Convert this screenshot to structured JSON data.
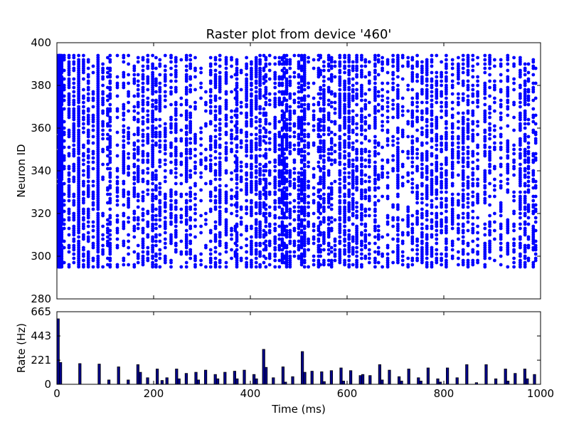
{
  "chart_data": [
    {
      "type": "scatter",
      "title": "Raster plot from device '460'",
      "xlabel": "",
      "ylabel": "Neuron ID",
      "xlim": [
        0,
        1000
      ],
      "ylim": [
        280,
        400
      ],
      "yticks": [
        "280",
        "300",
        "320",
        "340",
        "360",
        "380",
        "400"
      ],
      "neuron_id_range": [
        295,
        394
      ],
      "marker_color": "#0000ff",
      "series": [
        {
          "spike_times_ms": [
            3,
            5,
            6,
            7,
            8,
            10,
            15,
            25,
            35,
            45,
            55,
            65,
            75,
            85,
            95,
            105,
            110,
            125,
            138,
            148,
            160,
            168,
            178,
            188,
            198,
            205,
            213,
            224,
            236,
            246,
            257,
            268,
            276,
            286,
            298,
            308,
            318,
            328,
            337,
            350,
            361,
            369,
            372,
            381,
            392,
            402,
            412,
            420,
            428,
            432,
            440,
            451,
            460,
            466,
            470,
            475,
            482,
            491,
            500,
            506,
            512,
            520,
            531,
            541,
            545,
            552,
            562,
            568,
            575,
            585,
            595,
            604,
            612,
            620,
            630,
            638,
            646,
            658,
            665,
            673,
            684,
            695,
            705,
            715,
            726,
            735,
            745,
            755,
            765,
            775,
            785,
            795,
            805,
            818,
            830,
            840,
            850,
            860,
            870,
            885,
            895,
            905,
            918,
            932,
            945,
            958,
            968,
            975,
            985,
            990
          ]
        }
      ]
    },
    {
      "type": "bar",
      "title": "",
      "xlabel": "Time (ms)",
      "ylabel": "Rate (Hz)",
      "xlim": [
        0,
        1000
      ],
      "ylim": [
        0,
        665
      ],
      "yticks": [
        "0",
        "221",
        "443",
        "665"
      ],
      "xticks": [
        "0",
        "200",
        "400",
        "600",
        "800",
        "1000"
      ],
      "bar_width_ms": 5,
      "bar_fill": "#00008b",
      "bar_edge": "#000000",
      "bars": [
        {
          "x": 0,
          "y": 600
        },
        {
          "x": 5,
          "y": 200
        },
        {
          "x": 45,
          "y": 190
        },
        {
          "x": 85,
          "y": 185
        },
        {
          "x": 105,
          "y": 40
        },
        {
          "x": 125,
          "y": 160
        },
        {
          "x": 145,
          "y": 40
        },
        {
          "x": 165,
          "y": 180
        },
        {
          "x": 170,
          "y": 110
        },
        {
          "x": 185,
          "y": 60
        },
        {
          "x": 205,
          "y": 140
        },
        {
          "x": 215,
          "y": 35
        },
        {
          "x": 225,
          "y": 60
        },
        {
          "x": 245,
          "y": 140
        },
        {
          "x": 250,
          "y": 50
        },
        {
          "x": 265,
          "y": 100
        },
        {
          "x": 285,
          "y": 110
        },
        {
          "x": 290,
          "y": 40
        },
        {
          "x": 305,
          "y": 130
        },
        {
          "x": 325,
          "y": 90
        },
        {
          "x": 330,
          "y": 50
        },
        {
          "x": 345,
          "y": 110
        },
        {
          "x": 365,
          "y": 120
        },
        {
          "x": 370,
          "y": 50
        },
        {
          "x": 385,
          "y": 130
        },
        {
          "x": 405,
          "y": 90
        },
        {
          "x": 410,
          "y": 50
        },
        {
          "x": 425,
          "y": 320
        },
        {
          "x": 430,
          "y": 155
        },
        {
          "x": 445,
          "y": 60
        },
        {
          "x": 465,
          "y": 160
        },
        {
          "x": 470,
          "y": 20
        },
        {
          "x": 485,
          "y": 70
        },
        {
          "x": 505,
          "y": 300
        },
        {
          "x": 510,
          "y": 110
        },
        {
          "x": 525,
          "y": 120
        },
        {
          "x": 545,
          "y": 115
        },
        {
          "x": 550,
          "y": 25
        },
        {
          "x": 565,
          "y": 125
        },
        {
          "x": 585,
          "y": 150
        },
        {
          "x": 590,
          "y": 30
        },
        {
          "x": 605,
          "y": 125
        },
        {
          "x": 625,
          "y": 80
        },
        {
          "x": 630,
          "y": 90
        },
        {
          "x": 645,
          "y": 80
        },
        {
          "x": 665,
          "y": 180
        },
        {
          "x": 670,
          "y": 40
        },
        {
          "x": 685,
          "y": 130
        },
        {
          "x": 705,
          "y": 70
        },
        {
          "x": 710,
          "y": 30
        },
        {
          "x": 725,
          "y": 140
        },
        {
          "x": 745,
          "y": 60
        },
        {
          "x": 750,
          "y": 30
        },
        {
          "x": 765,
          "y": 150
        },
        {
          "x": 785,
          "y": 50
        },
        {
          "x": 790,
          "y": 20
        },
        {
          "x": 805,
          "y": 150
        },
        {
          "x": 825,
          "y": 60
        },
        {
          "x": 845,
          "y": 180
        },
        {
          "x": 865,
          "y": 15
        },
        {
          "x": 885,
          "y": 180
        },
        {
          "x": 905,
          "y": 50
        },
        {
          "x": 925,
          "y": 140
        },
        {
          "x": 930,
          "y": 30
        },
        {
          "x": 945,
          "y": 100
        },
        {
          "x": 965,
          "y": 140
        },
        {
          "x": 970,
          "y": 50
        },
        {
          "x": 985,
          "y": 90
        }
      ]
    }
  ]
}
